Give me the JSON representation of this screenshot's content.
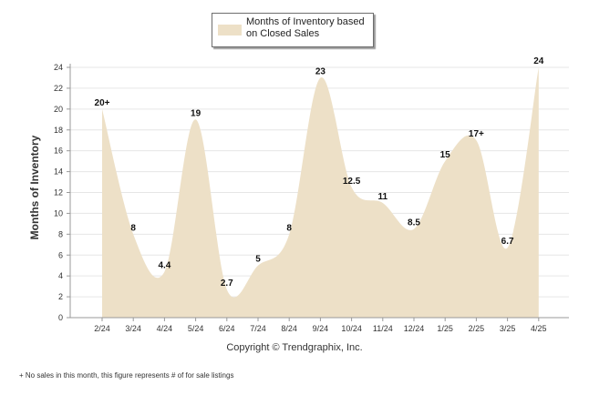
{
  "legend": {
    "label": "Months of Inventory based on Closed Sales",
    "color": "#ede0c7"
  },
  "copyright": "Copyright © Trendgraphix, Inc.",
  "footnote": "+  No sales in this month, this figure represents # of for sale listings",
  "chart_data": {
    "type": "area",
    "ylabel": "Months of Inventory",
    "ylim": [
      0,
      24
    ],
    "ytick_step": 2,
    "grid": true,
    "legend_position": "top-center",
    "categories": [
      "2/24",
      "3/24",
      "4/24",
      "5/24",
      "6/24",
      "7/24",
      "8/24",
      "9/24",
      "10/24",
      "11/24",
      "12/24",
      "1/25",
      "2/25",
      "3/25",
      "4/25"
    ],
    "values": [
      20,
      8,
      4.4,
      19,
      2.7,
      5,
      8,
      23,
      12.5,
      11,
      8.5,
      15,
      17,
      6.7,
      24
    ],
    "data_labels": [
      "20+",
      "8",
      "4.4",
      "19",
      "2.7",
      "5",
      "8",
      "23",
      "12.5",
      "11",
      "8.5",
      "15",
      "17+",
      "6.7",
      "24"
    ]
  }
}
